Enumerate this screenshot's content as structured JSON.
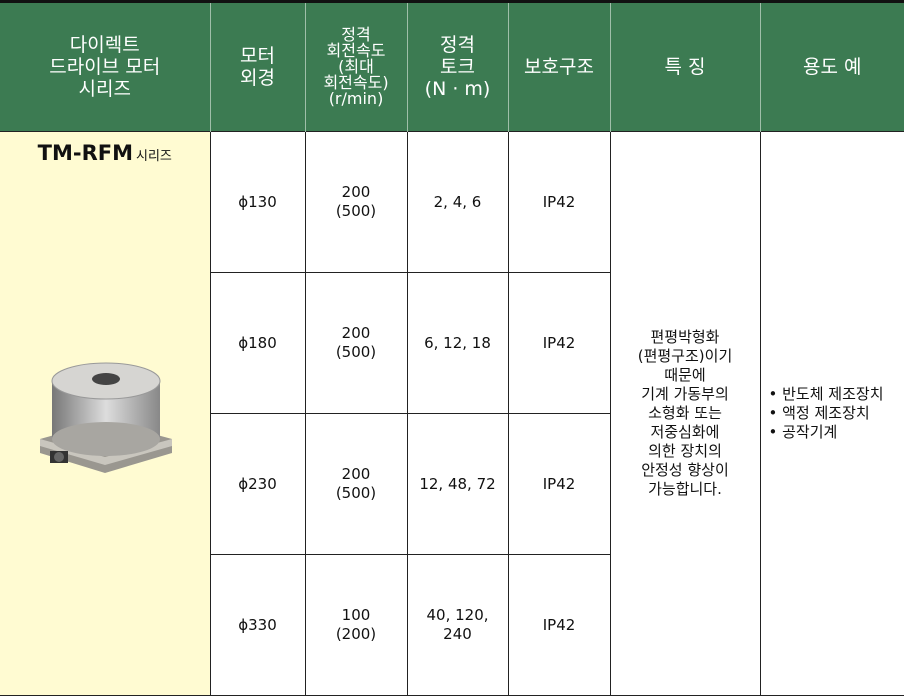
{
  "table": {
    "header": [
      [
        "다이렉트",
        "드라이브 모터",
        "시리즈"
      ],
      [
        "모터",
        "외경"
      ],
      [
        "정격",
        "회전속도",
        "(최대",
        "회전속도)",
        "(r/min)"
      ],
      [
        "정격",
        "토크",
        "(N · m)"
      ],
      [
        "보호구조"
      ],
      [
        "특 징"
      ],
      [
        "용도 예"
      ]
    ],
    "series": {
      "name": "TM-RFM",
      "suffix": "시리즈"
    },
    "rows": [
      {
        "diameter": "ϕ130",
        "speed": [
          "200",
          "(500)"
        ],
        "torque": [
          "2, 4, 6"
        ],
        "protection": "IP42"
      },
      {
        "diameter": "ϕ180",
        "speed": [
          "200",
          "(500)"
        ],
        "torque": [
          "6, 12, 18"
        ],
        "protection": "IP42"
      },
      {
        "diameter": "ϕ230",
        "speed": [
          "200",
          "(500)"
        ],
        "torque": [
          "12, 48, 72"
        ],
        "protection": "IP42"
      },
      {
        "diameter": "ϕ330",
        "speed": [
          "100",
          "(200)"
        ],
        "torque": [
          "40, 120,",
          "240"
        ],
        "protection": "IP42"
      }
    ],
    "features": [
      "편평박형화",
      "(편평구조)이기",
      "때문에",
      "기계 가동부의",
      "소형화 또는",
      "저중심화에",
      "의한 장치의",
      "안정성 향상이",
      "가능합니다."
    ],
    "uses": [
      "반도체 제조장치",
      "액정 제조장치",
      "공작기계"
    ]
  }
}
